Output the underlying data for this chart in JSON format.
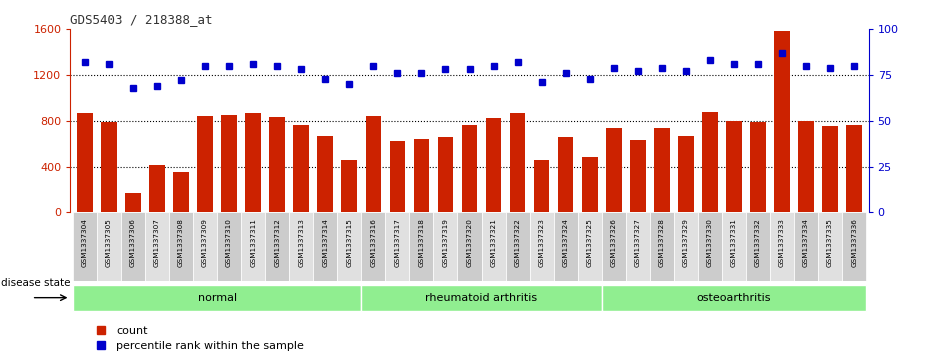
{
  "title": "GDS5403 / 218388_at",
  "samples": [
    "GSM1337304",
    "GSM1337305",
    "GSM1337306",
    "GSM1337307",
    "GSM1337308",
    "GSM1337309",
    "GSM1337310",
    "GSM1337311",
    "GSM1337312",
    "GSM1337313",
    "GSM1337314",
    "GSM1337315",
    "GSM1337316",
    "GSM1337317",
    "GSM1337318",
    "GSM1337319",
    "GSM1337320",
    "GSM1337321",
    "GSM1337322",
    "GSM1337323",
    "GSM1337324",
    "GSM1337325",
    "GSM1337326",
    "GSM1337327",
    "GSM1337328",
    "GSM1337329",
    "GSM1337330",
    "GSM1337331",
    "GSM1337332",
    "GSM1337333",
    "GSM1337334",
    "GSM1337335",
    "GSM1337336"
  ],
  "counts": [
    870,
    790,
    170,
    410,
    350,
    840,
    850,
    870,
    830,
    760,
    670,
    460,
    840,
    620,
    640,
    660,
    760,
    820,
    870,
    460,
    660,
    480,
    740,
    630,
    740,
    670,
    880,
    800,
    790,
    1580,
    800,
    750,
    760
  ],
  "percentile_ranks": [
    82,
    81,
    68,
    69,
    72,
    80,
    80,
    81,
    80,
    78,
    73,
    70,
    80,
    76,
    76,
    78,
    78,
    80,
    82,
    71,
    76,
    73,
    79,
    77,
    79,
    77,
    83,
    81,
    81,
    87,
    80,
    79,
    80
  ],
  "group_boundaries": [
    [
      0,
      12,
      "normal"
    ],
    [
      12,
      22,
      "rheumatoid arthritis"
    ],
    [
      22,
      33,
      "osteoarthritis"
    ]
  ],
  "bar_color": "#cc2200",
  "dot_color": "#0000cc",
  "left_ylim": [
    0,
    1600
  ],
  "right_ylim": [
    0,
    100
  ],
  "left_yticks": [
    0,
    400,
    800,
    1200,
    1600
  ],
  "right_yticks": [
    0,
    25,
    50,
    75,
    100
  ],
  "grid_values": [
    400,
    800,
    1200
  ],
  "tick_label_bg": "#cccccc",
  "left_axis_color": "#cc2200",
  "right_axis_color": "#0000cc",
  "green_color": "#90EE90",
  "disease_state_label": "disease state",
  "legend_count_label": "count",
  "legend_percentile_label": "percentile rank within the sample"
}
